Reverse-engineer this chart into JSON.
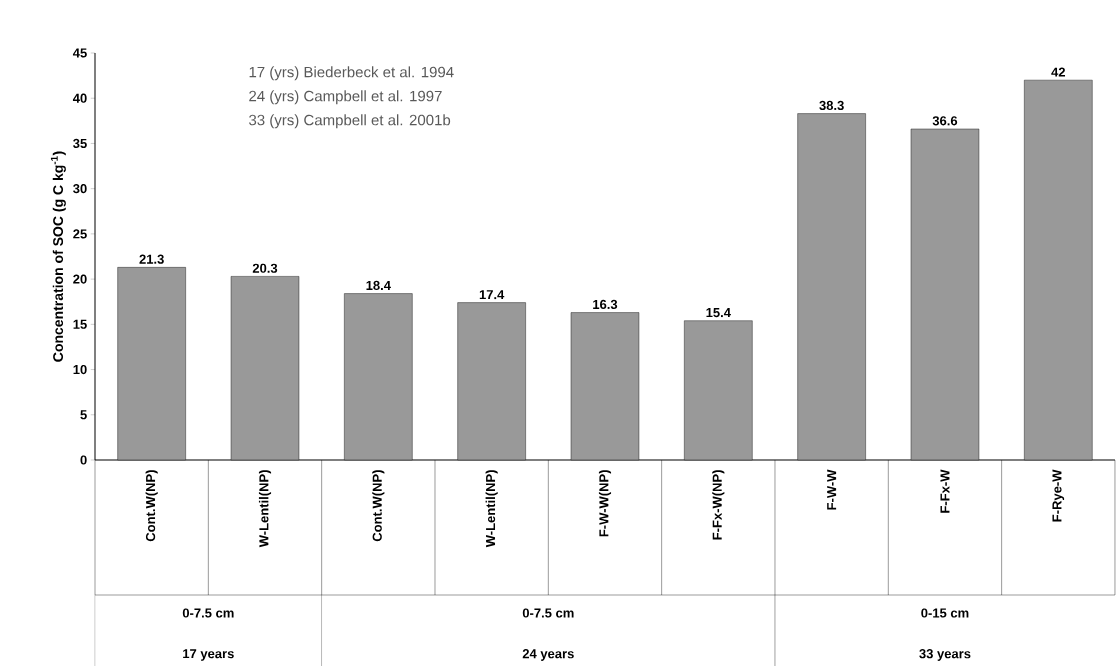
{
  "chart_data": {
    "type": "bar",
    "ylabel": "Concentration of SOC (g C kg$^{-1}$)",
    "categories": [
      "Cont.W(NP)",
      "W-Lentil(NP)",
      "Cont.W(NP)",
      "W-Lentil(NP)",
      "F-W-W(NP)",
      "F-Fx-W(NP)",
      "F-W-W",
      "F-Fx-W",
      "F-Rye-W"
    ],
    "values": [
      21.3,
      20.3,
      18.4,
      17.4,
      16.3,
      15.4,
      38.3,
      36.6,
      42
    ],
    "color": "#999999",
    "ylim": [
      0,
      45
    ],
    "yticks": [
      0,
      5,
      10,
      15,
      20,
      25,
      30,
      35,
      40,
      45
    ],
    "data_labels": true,
    "grid": false,
    "annotations": [
      "17 (yrs) Biederbeck et al. 1994",
      "24 (yrs) Campbell et al. 1997",
      "33 (yrs) Campbell et al. 2001b",
      "0-7.5 cm",
      "17 years",
      "0-7.5 cm",
      "24 years",
      "0-15 cm",
      "33 years"
    ]
  }
}
